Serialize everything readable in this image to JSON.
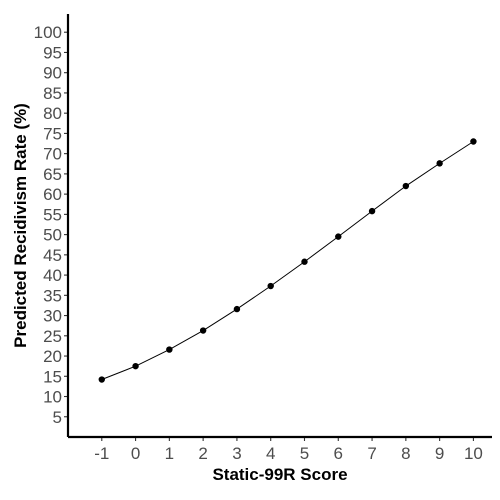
{
  "chart_data": {
    "type": "line",
    "title": "",
    "xlabel": "Static-99R Score",
    "ylabel": "Predicted Recidivism Rate (%)",
    "x": [
      -1,
      0,
      1,
      2,
      3,
      4,
      5,
      6,
      7,
      8,
      9,
      10
    ],
    "series": [
      {
        "values": [
          14.2,
          17.5,
          21.6,
          26.3,
          31.6,
          37.3,
          43.3,
          49.5,
          55.8,
          62.0,
          67.6,
          73.0
        ]
      }
    ],
    "x_ticks": [
      "-1",
      "0",
      "1",
      "2",
      "3",
      "4",
      "5",
      "6",
      "7",
      "8",
      "9",
      "10"
    ],
    "y_ticks": [
      "5",
      "10",
      "15",
      "20",
      "25",
      "30",
      "35",
      "40",
      "45",
      "50",
      "55",
      "60",
      "65",
      "70",
      "75",
      "80",
      "85",
      "90",
      "95",
      "100"
    ],
    "xlim": [
      -2,
      10.55
    ],
    "ylim": [
      0,
      104.5
    ],
    "grid": false,
    "legend": "none",
    "colors": {
      "line": "#000000",
      "point": "#000000",
      "axis": "#000000",
      "tick_label": "#4d4d4d"
    }
  }
}
